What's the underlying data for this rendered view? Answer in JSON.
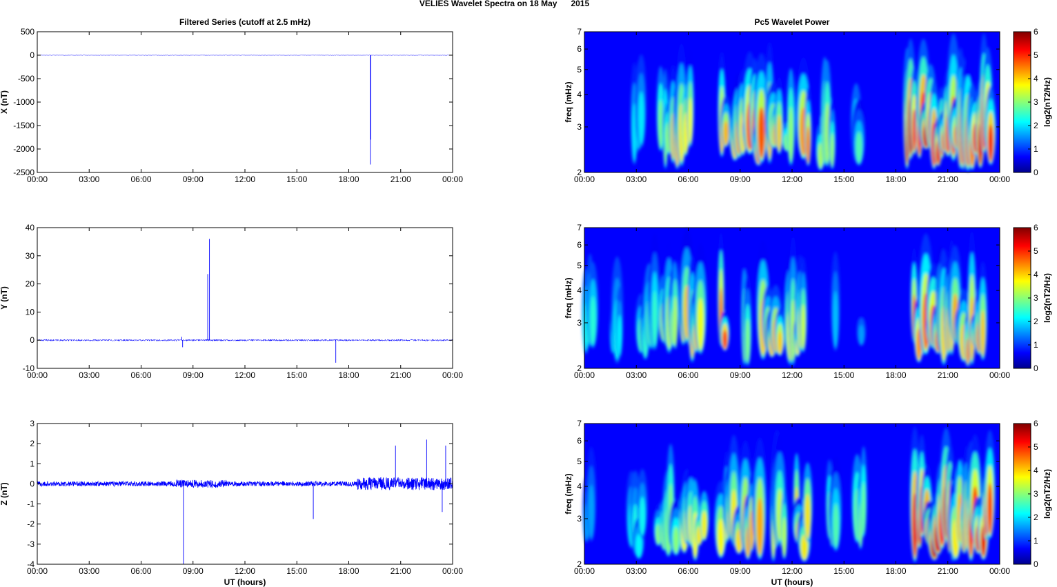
{
  "figure": {
    "title": "VELIES Wavelet Spectra on 18 May      2015",
    "left_title": "Filtered Series (cutoff at 2.5 mHz)",
    "right_title": "Pc5 Wavelet Power",
    "xlabel": "UT (hours)"
  },
  "colors": {
    "trace": "#0000ff"
  },
  "chart_data": [
    {
      "type": "line",
      "id": "x-series",
      "ylabel": "X (nT)",
      "xlim": [
        0,
        24
      ],
      "ylim": [
        -2500,
        500
      ],
      "xticks": [
        0,
        3,
        6,
        9,
        12,
        15,
        18,
        21,
        24
      ],
      "xticklabels": [
        "00:00",
        "03:00",
        "06:00",
        "09:00",
        "12:00",
        "15:00",
        "18:00",
        "21:00",
        "00:00"
      ],
      "yticks": [
        500,
        0,
        -500,
        -1000,
        -1500,
        -2000,
        -2500
      ],
      "yticklabels": [
        "500",
        "0",
        "-500",
        "-1000",
        "-1500",
        "-2000",
        "-2500"
      ],
      "baseline_noise": 4,
      "spikes": [
        {
          "x": 19.25,
          "y": -2330
        },
        {
          "x": 19.27,
          "y": -1800
        }
      ]
    },
    {
      "type": "line",
      "id": "y-series",
      "ylabel": "Y (nT)",
      "xlim": [
        0,
        24
      ],
      "ylim": [
        -10,
        40
      ],
      "xticks": [
        0,
        3,
        6,
        9,
        12,
        15,
        18,
        21,
        24
      ],
      "xticklabels": [
        "00:00",
        "03:00",
        "06:00",
        "09:00",
        "12:00",
        "15:00",
        "18:00",
        "21:00",
        "00:00"
      ],
      "yticks": [
        40,
        30,
        20,
        10,
        0,
        -10
      ],
      "yticklabels": [
        "40",
        "30",
        "20",
        "10",
        "0",
        "-10"
      ],
      "baseline_noise": 0.3,
      "spikes": [
        {
          "x": 8.35,
          "y": 1.2
        },
        {
          "x": 8.4,
          "y": -2.5
        },
        {
          "x": 9.85,
          "y": 23.5
        },
        {
          "x": 9.95,
          "y": 36
        },
        {
          "x": 17.25,
          "y": -8
        }
      ]
    },
    {
      "type": "line",
      "id": "z-series",
      "ylabel": "Z (nT)",
      "xlim": [
        0,
        24
      ],
      "ylim": [
        -4,
        3
      ],
      "xticks": [
        0,
        3,
        6,
        9,
        12,
        15,
        18,
        21,
        24
      ],
      "xticklabels": [
        "00:00",
        "03:00",
        "06:00",
        "09:00",
        "12:00",
        "15:00",
        "18:00",
        "21:00",
        "00:00"
      ],
      "yticks": [
        3,
        2,
        1,
        0,
        -1,
        -2,
        -3,
        -4
      ],
      "yticklabels": [
        "3",
        "2",
        "1",
        "0",
        "-1",
        "-2",
        "-3",
        "-4"
      ],
      "baseline_noise": 0.12,
      "spikes": [
        {
          "x": 8.45,
          "y": -4
        },
        {
          "x": 15.95,
          "y": -1.75
        },
        {
          "x": 20.7,
          "y": 1.9
        },
        {
          "x": 22.5,
          "y": 2.2
        },
        {
          "x": 23.6,
          "y": 1.9
        },
        {
          "x": 23.4,
          "y": -1.4
        }
      ]
    },
    {
      "type": "heatmap",
      "id": "x-power",
      "ylabel": "freq (mHz)",
      "yscale": "log",
      "xlim": [
        0,
        24
      ],
      "ylim": [
        2,
        7
      ],
      "clim": [
        0,
        6
      ],
      "xticks": [
        0,
        3,
        6,
        9,
        12,
        15,
        18,
        21,
        24
      ],
      "xticklabels": [
        "00:00",
        "03:00",
        "06:00",
        "09:00",
        "12:00",
        "15:00",
        "18:00",
        "21:00",
        "00:00"
      ],
      "yticks": [
        2,
        3,
        4,
        5,
        6,
        7
      ],
      "yticklabels": [
        "2",
        "3",
        "4",
        "5",
        "6",
        "7"
      ],
      "colorbar_ticks": [
        "6",
        "5",
        "4",
        "3",
        "2",
        "1",
        "0"
      ],
      "colorbar_label": "log2(nT2/Hz)",
      "active_bands": [
        [
          2.8,
          3.4,
          2.2
        ],
        [
          4.3,
          5.0,
          3.2
        ],
        [
          5.0,
          6.2,
          4.2
        ],
        [
          7.8,
          8.3,
          4.6
        ],
        [
          8.6,
          9.4,
          4.4
        ],
        [
          9.5,
          10.4,
          5.2
        ],
        [
          10.6,
          11.4,
          4.4
        ],
        [
          11.6,
          12.1,
          3.4
        ],
        [
          12.3,
          13.0,
          4.8
        ],
        [
          13.6,
          14.4,
          3.6
        ],
        [
          15.6,
          16.0,
          2.8
        ],
        [
          18.5,
          19.0,
          6.0
        ],
        [
          19.0,
          20.5,
          5.8
        ],
        [
          20.5,
          21.4,
          5.2
        ],
        [
          21.4,
          22.5,
          5.0
        ],
        [
          22.5,
          23.6,
          5.6
        ]
      ]
    },
    {
      "type": "heatmap",
      "id": "y-power",
      "ylabel": "freq (mHz)",
      "yscale": "log",
      "xlim": [
        0,
        24
      ],
      "ylim": [
        2,
        7
      ],
      "clim": [
        0,
        6
      ],
      "xticks": [
        0,
        3,
        6,
        9,
        12,
        15,
        18,
        21,
        24
      ],
      "xticklabels": [
        "00:00",
        "03:00",
        "06:00",
        "09:00",
        "12:00",
        "15:00",
        "18:00",
        "21:00",
        "00:00"
      ],
      "yticks": [
        2,
        3,
        4,
        5,
        6,
        7
      ],
      "yticklabels": [
        "2",
        "3",
        "4",
        "5",
        "6",
        "7"
      ],
      "colorbar_ticks": [
        "6",
        "5",
        "4",
        "3",
        "2",
        "1",
        "0"
      ],
      "colorbar_label": "log2(nT2/Hz)",
      "active_bands": [
        [
          0.0,
          0.6,
          2.6
        ],
        [
          1.5,
          2.2,
          2.4
        ],
        [
          3.2,
          4.2,
          2.8
        ],
        [
          4.4,
          5.4,
          3.6
        ],
        [
          5.6,
          6.8,
          4.2
        ],
        [
          7.8,
          8.3,
          5.4
        ],
        [
          9.1,
          9.6,
          3.4
        ],
        [
          10.2,
          11.4,
          4.6
        ],
        [
          11.8,
          12.8,
          3.8
        ],
        [
          14.4,
          14.6,
          2.0
        ],
        [
          16.0,
          16.1,
          1.8
        ],
        [
          19.0,
          20.5,
          5.0
        ],
        [
          20.5,
          22.0,
          4.4
        ],
        [
          22.0,
          23.2,
          4.6
        ]
      ]
    },
    {
      "type": "heatmap",
      "id": "z-power",
      "ylabel": "freq (mHz)",
      "yscale": "log",
      "xlim": [
        0,
        24
      ],
      "ylim": [
        2,
        7
      ],
      "clim": [
        0,
        6
      ],
      "xticks": [
        0,
        3,
        6,
        9,
        12,
        15,
        18,
        21,
        24
      ],
      "xticklabels": [
        "00:00",
        "03:00",
        "06:00",
        "09:00",
        "12:00",
        "15:00",
        "18:00",
        "21:00",
        "00:00"
      ],
      "yticks": [
        2,
        3,
        4,
        5,
        6,
        7
      ],
      "yticklabels": [
        "2",
        "3",
        "4",
        "5",
        "6",
        "7"
      ],
      "colorbar_ticks": [
        "6",
        "5",
        "4",
        "3",
        "2",
        "1",
        "0"
      ],
      "colorbar_label": "log2(nT2/Hz)",
      "active_bands": [
        [
          0.0,
          0.5,
          1.8
        ],
        [
          2.6,
          3.4,
          2.4
        ],
        [
          4.2,
          5.4,
          3.4
        ],
        [
          5.6,
          7.0,
          4.0
        ],
        [
          7.8,
          9.0,
          4.2
        ],
        [
          9.2,
          10.2,
          4.6
        ],
        [
          10.8,
          11.6,
          3.8
        ],
        [
          12.1,
          13.0,
          4.2
        ],
        [
          14.0,
          14.6,
          3.0
        ],
        [
          15.6,
          16.2,
          3.2
        ],
        [
          19.0,
          21.2,
          5.8
        ],
        [
          21.2,
          22.2,
          4.4
        ],
        [
          22.2,
          23.6,
          5.6
        ]
      ]
    }
  ]
}
